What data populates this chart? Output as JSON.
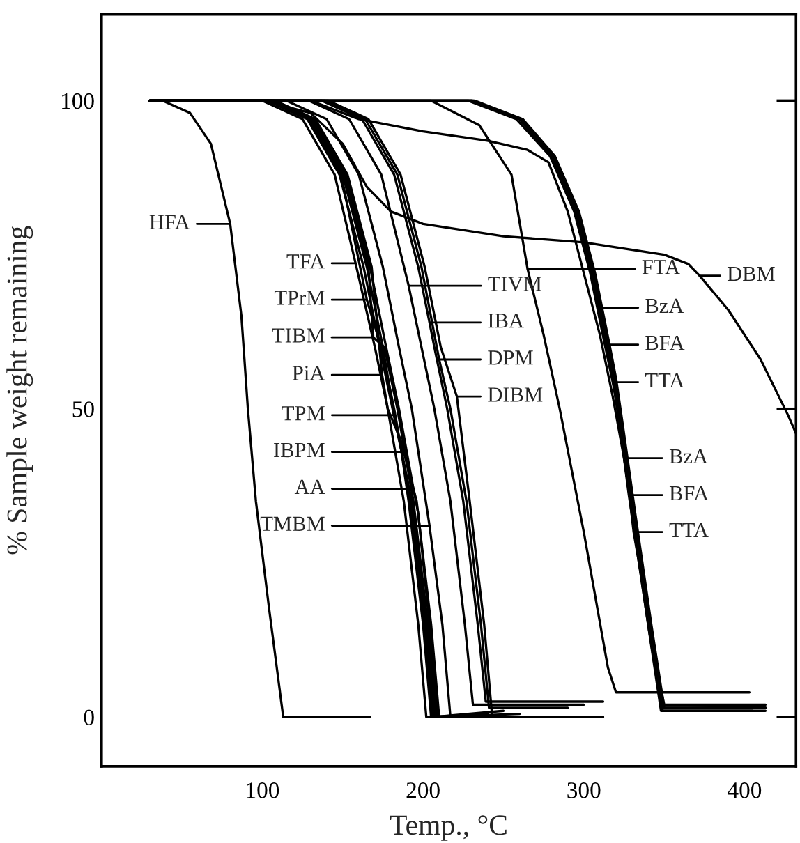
{
  "chart_data": {
    "type": "line",
    "xlabel": "Temp., °C",
    "ylabel": "% Sample weight remaining",
    "xlim": [
      0,
      432
    ],
    "ylim": [
      -8,
      114
    ],
    "xticks": [
      100,
      200,
      300,
      400
    ],
    "yticks": [
      0,
      50,
      100
    ],
    "series": [
      {
        "color": "#000000",
        "x": [
          30,
          38,
          55,
          68,
          80,
          87,
          91,
          96,
          104,
          113,
          167
        ],
        "values": [
          100,
          100,
          98,
          93,
          80,
          65,
          50,
          35,
          18,
          0,
          0
        ]
      },
      {
        "color": "#000000",
        "x": [
          30,
          100,
          125,
          145,
          158,
          170,
          178,
          188,
          197,
          202,
          240
        ],
        "values": [
          100,
          100,
          97,
          88,
          73.6,
          60,
          50,
          35,
          15,
          0,
          0.5
        ]
      },
      {
        "color": "#000000",
        "x": [
          30,
          104,
          129,
          149,
          165,
          174,
          182,
          192,
          201,
          206,
          250
        ],
        "values": [
          100,
          100,
          97,
          88,
          67.7,
          60,
          50,
          35,
          15,
          0,
          1
        ]
      },
      {
        "color": "#000000",
        "x": [
          30,
          106,
          131,
          151,
          166,
          169,
          176,
          184,
          194,
          203,
          208,
          270
        ],
        "values": [
          100,
          100,
          97,
          88,
          73,
          61.6,
          60,
          50,
          35,
          15,
          0,
          0
        ]
      },
      {
        "color": "#000000",
        "x": [
          30,
          108,
          133,
          153,
          168,
          174.5,
          178,
          186,
          196,
          205,
          210,
          240
        ],
        "values": [
          100,
          100,
          97,
          88,
          73,
          55.5,
          50,
          45,
          35,
          15,
          0,
          0
        ]
      },
      {
        "color": "#000000",
        "x": [
          30,
          105,
          130,
          150,
          165,
          175,
          182,
          193,
          202,
          207,
          260
        ],
        "values": [
          100,
          100,
          97,
          88,
          73,
          60,
          49,
          35,
          15,
          0,
          0.5
        ]
      },
      {
        "color": "#000000",
        "x": [
          30,
          103,
          128,
          148,
          163,
          173,
          181,
          186.6,
          191,
          200,
          205,
          230
        ],
        "values": [
          100,
          100,
          97,
          88,
          73,
          60,
          50,
          43,
          35,
          15,
          0,
          0
        ]
      },
      {
        "color": "#000000",
        "x": [
          30,
          107,
          132,
          152,
          167,
          177,
          185,
          194,
          197,
          204,
          209,
          280
        ],
        "values": [
          100,
          100,
          97,
          88,
          73,
          60,
          50,
          37,
          33,
          15,
          0,
          0
        ]
      },
      {
        "color": "#000000",
        "x": [
          30,
          115,
          140,
          160,
          175,
          185,
          193,
          204,
          212,
          217,
          312
        ],
        "values": [
          100,
          100,
          97,
          88,
          73,
          60,
          50,
          31,
          15,
          0,
          0
        ]
      },
      {
        "color": "#000000",
        "x": [
          30,
          129,
          154,
          174,
          191,
          199,
          207,
          217,
          226,
          231,
          300
        ],
        "values": [
          100,
          100,
          97,
          88,
          70,
          60,
          50,
          35,
          15,
          2,
          2
        ]
      },
      {
        "color": "#000000",
        "x": [
          30,
          137,
          162,
          182,
          197,
          204,
          207,
          215,
          225,
          234,
          239,
          312
        ],
        "values": [
          100,
          100,
          97,
          88,
          73,
          64,
          60,
          50,
          35,
          15,
          2.5,
          2.5
        ]
      },
      {
        "color": "#000000",
        "x": [
          30,
          139,
          164,
          184,
          199,
          210,
          217,
          227,
          236,
          241,
          290
        ],
        "values": [
          100,
          100,
          97,
          88,
          73,
          58,
          50,
          35,
          15,
          1.5,
          1.5
        ]
      },
      {
        "color": "#000000",
        "x": [
          30,
          141,
          166,
          186,
          201,
          211,
          221,
          229,
          238,
          243,
          312
        ],
        "values": [
          100,
          100,
          97,
          88,
          73,
          60,
          52,
          35,
          15,
          0,
          0
        ]
      },
      {
        "color": "#000000",
        "x": [
          30,
          205,
          235,
          255,
          265,
          275,
          285,
          300,
          315,
          320,
          403
        ],
        "values": [
          100,
          100,
          96,
          88,
          72.7,
          62,
          50,
          30,
          8,
          4,
          4
        ]
      },
      {
        "color": "#000000",
        "x": [
          30,
          100,
          130,
          150,
          165,
          180,
          200,
          250,
          300,
          350,
          365,
          372,
          390,
          410,
          427,
          432
        ],
        "values": [
          100,
          100,
          98,
          93,
          86,
          82,
          80,
          78,
          77,
          75,
          73.5,
          71.6,
          66,
          58,
          49,
          46
        ]
      },
      {
        "color": "#000000",
        "x": [
          30,
          230,
          260,
          280,
          295,
          305,
          309.5,
          318,
          323,
          330,
          340,
          348,
          413
        ],
        "values": [
          100,
          100,
          97,
          91,
          82,
          72,
          66.4,
          55,
          46,
          33,
          15,
          2,
          2
        ]
      },
      {
        "color": "#000000",
        "x": [
          30,
          232,
          262,
          282,
          297,
          307,
          316,
          320,
          325,
          332,
          342,
          350,
          413
        ],
        "values": [
          100,
          100,
          97,
          91,
          82,
          72,
          60.4,
          55,
          46,
          33,
          15,
          1.5,
          1.5
        ]
      },
      {
        "color": "#000000",
        "x": [
          30,
          228,
          258,
          279,
          294,
          304,
          311,
          318,
          324,
          331,
          341,
          349,
          405
        ],
        "values": [
          100,
          100,
          97,
          91,
          82,
          72,
          63,
          54.3,
          46,
          33,
          15,
          1,
          1
        ]
      },
      {
        "color": "#000000",
        "x": [
          30,
          130,
          160,
          200,
          240,
          265,
          278,
          290,
          300,
          310,
          318,
          325,
          333,
          342,
          350,
          413
        ],
        "values": [
          100,
          100,
          97,
          95,
          93.5,
          92,
          90,
          82,
          72,
          62,
          52,
          42,
          28,
          12,
          2,
          1.5
        ]
      },
      {
        "color": "#000000",
        "x": [
          30,
          230,
          260,
          280,
          295,
          305,
          312,
          318,
          323,
          328,
          340,
          348,
          413
        ],
        "values": [
          100,
          100,
          97,
          91,
          82,
          72,
          63,
          55,
          46,
          36,
          15,
          1,
          1
        ]
      },
      {
        "color": "#000000",
        "x": [
          30,
          231,
          261,
          281,
          296,
          306,
          313,
          319,
          324,
          331,
          341,
          349,
          413
        ],
        "values": [
          100,
          100,
          97,
          91,
          82,
          72,
          63,
          55,
          46,
          30,
          15,
          1.5,
          1.5
        ]
      }
    ],
    "annotations": [
      {
        "text": "HFA",
        "x": 80,
        "y": 80
      },
      {
        "text": "TFA",
        "x": 158,
        "y": 73.6
      },
      {
        "text": "TPrM",
        "x": 165,
        "y": 67.7
      },
      {
        "text": "TIBM",
        "x": 169,
        "y": 61.6
      },
      {
        "text": "PiA",
        "x": 174.5,
        "y": 55.5
      },
      "TPM",
      "IBPM",
      "AA",
      "TMBM",
      "TIVM",
      {
        "text": "IBA",
        "x": 204,
        "y": 64
      },
      {
        "text": "DPM",
        "x": 210,
        "y": 58
      },
      {
        "text": "DIBM",
        "x": 221,
        "y": 52
      },
      {
        "text": "FTA",
        "x": 265,
        "y": 72.7
      },
      {
        "text": "DBM",
        "x": 372,
        "y": 71.6
      },
      {
        "text": "BzA",
        "x": 309.5,
        "y": 66.4
      },
      {
        "text": "BFA",
        "x": 316,
        "y": 60.4
      },
      {
        "text": "TTA",
        "x": 318,
        "y": 54.3
      },
      {
        "text": "BzA",
        "x": 325,
        "y": 42
      },
      {
        "text": "BFA",
        "x": 328,
        "y": 36
      },
      {
        "text": "TTA",
        "x": 331,
        "y": 30
      }
    ]
  }
}
